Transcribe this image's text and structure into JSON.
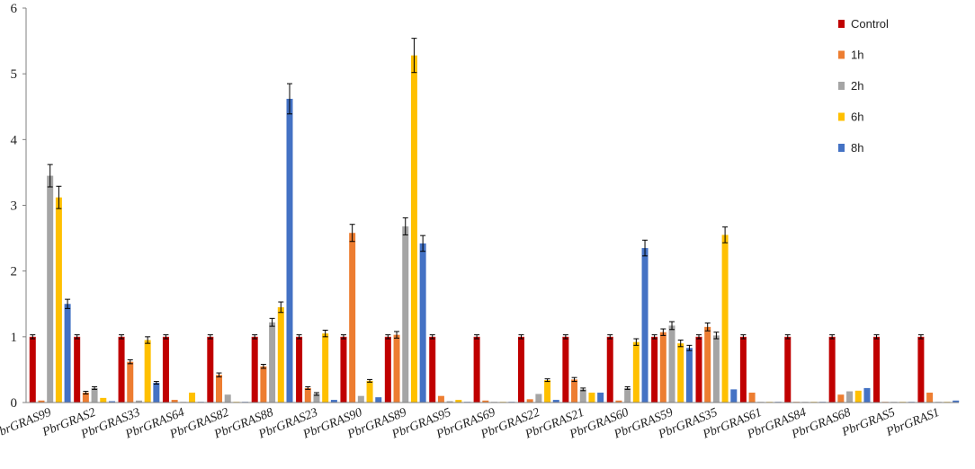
{
  "chart_data": {
    "type": "bar",
    "title": "",
    "xlabel": "",
    "ylabel": "",
    "ylim": [
      0,
      6
    ],
    "yticks": [
      0,
      1,
      2,
      3,
      4,
      5,
      6
    ],
    "grid": false,
    "legend_position": "top-right",
    "categories": [
      "PbrGRAS99",
      "PbrGRAS2",
      "PbrGRAS33",
      "PbrGRAS64",
      "PbrGRAS82",
      "PbrGRAS88",
      "PbrGRAS23",
      "PbrGRAS90",
      "PbrGRAS89",
      "PbrGRAS95",
      "PbrGRAS69",
      "PbrGRAS22",
      "PbrGRAS21",
      "PbrGRAS60",
      "PbrGRAS59",
      "PbrGRAS35",
      "PbrGRAS61",
      "PbrGRAS84",
      "PbrGRAS68",
      "PbrGRAS5",
      "PbrGRAS1"
    ],
    "series": [
      {
        "name": "Control",
        "color": "#c00000",
        "values": [
          1,
          1,
          1,
          1,
          1,
          1,
          1,
          1,
          1,
          1,
          1,
          1,
          1,
          1,
          1,
          1,
          1,
          1,
          1,
          1,
          1
        ],
        "errors": [
          0.03,
          0.03,
          0.03,
          0.03,
          0.03,
          0.03,
          0.03,
          0.03,
          0.03,
          0.03,
          0.03,
          0.03,
          0.03,
          0.03,
          0.03,
          0.03,
          0.03,
          0.03,
          0.03,
          0.03,
          0.03
        ]
      },
      {
        "name": "1h",
        "color": "#ed7d31",
        "values": [
          0.03,
          0.15,
          0.62,
          0.04,
          0.42,
          0.55,
          0.22,
          2.58,
          1.03,
          0.1,
          0.03,
          0.05,
          0.35,
          0.03,
          1.07,
          1.15,
          0.15,
          0.01,
          0.12,
          0.01,
          0.15
        ],
        "errors": [
          0.01,
          0.02,
          0.03,
          0.01,
          0.03,
          0.03,
          0.02,
          0.13,
          0.05,
          0.01,
          0.01,
          0.01,
          0.03,
          0.01,
          0.05,
          0.06,
          0.01,
          0.01,
          0.01,
          0.01,
          0.01
        ]
      },
      {
        "name": "2h",
        "color": "#a5a5a5",
        "values": [
          3.45,
          0.22,
          0.03,
          0.01,
          0.12,
          1.22,
          0.13,
          0.1,
          2.68,
          0.02,
          0.01,
          0.13,
          0.2,
          0.22,
          1.17,
          1.02,
          0.01,
          0.01,
          0.17,
          0.01,
          0.01
        ],
        "errors": [
          0.17,
          0.02,
          0.01,
          0.01,
          0.01,
          0.06,
          0.02,
          0.01,
          0.13,
          0.01,
          0.01,
          0.01,
          0.02,
          0.02,
          0.06,
          0.05,
          0.01,
          0.01,
          0.01,
          0.01,
          0.01
        ]
      },
      {
        "name": "6h",
        "color": "#ffc000",
        "values": [
          3.12,
          0.07,
          0.95,
          0.15,
          0.01,
          1.45,
          1.05,
          0.33,
          5.28,
          0.04,
          0.01,
          0.34,
          0.15,
          0.92,
          0.9,
          2.55,
          0.01,
          0.01,
          0.18,
          0.01,
          0.01
        ],
        "errors": [
          0.17,
          0.01,
          0.05,
          0.01,
          0.01,
          0.08,
          0.05,
          0.02,
          0.26,
          0.01,
          0.01,
          0.02,
          0.01,
          0.05,
          0.05,
          0.12,
          0.01,
          0.01,
          0.01,
          0.01,
          0.01
        ]
      },
      {
        "name": "8h",
        "color": "#4472c4",
        "values": [
          1.5,
          0.02,
          0.3,
          0.01,
          0.01,
          4.62,
          0.04,
          0.08,
          2.42,
          0.01,
          0.01,
          0.04,
          0.15,
          2.35,
          0.83,
          0.2,
          0.01,
          0.01,
          0.22,
          0.01,
          0.03
        ],
        "errors": [
          0.07,
          0.01,
          0.02,
          0.01,
          0.01,
          0.23,
          0.01,
          0.01,
          0.12,
          0.01,
          0.01,
          0.01,
          0.01,
          0.12,
          0.04,
          0.01,
          0.01,
          0.01,
          0.01,
          0.01,
          0.01
        ]
      }
    ]
  }
}
